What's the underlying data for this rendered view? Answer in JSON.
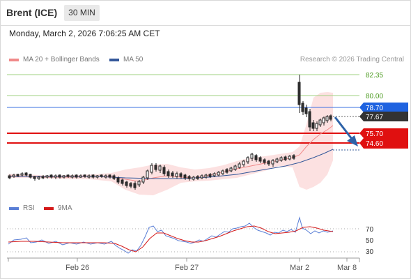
{
  "instrument": "Brent (ICE)",
  "timeframe": "30 MIN",
  "datetime": "Monday, March 2, 2026 7:06:25 AM CET",
  "credit": "Research © 2026 Trading Central",
  "legend_main": [
    {
      "label": "MA 20 + Bollinger Bands",
      "color": "#f08a8a"
    },
    {
      "label": "MA 50",
      "color": "#34589a"
    }
  ],
  "legend_rsi": [
    {
      "label": "RSI",
      "color": "#5a7fd6"
    },
    {
      "label": "9MA",
      "color": "#d41a1a"
    }
  ],
  "levels": [
    {
      "value": "82.35",
      "kind": "resistance"
    },
    {
      "value": "80.00",
      "kind": "resistance"
    },
    {
      "value": "78.70",
      "kind": "pivot",
      "color": "#1f63e0"
    },
    {
      "value": "77.67",
      "kind": "last",
      "color": "#333333"
    },
    {
      "value": "75.70",
      "kind": "support",
      "color": "#e01010"
    },
    {
      "value": "74.60",
      "kind": "support",
      "color": "#e01010"
    }
  ],
  "rsi_ticks": [
    "70",
    "50",
    "30"
  ],
  "x_labels": [
    "Feb 26",
    "Feb 27",
    "Mar 2",
    "Mar 8"
  ]
}
